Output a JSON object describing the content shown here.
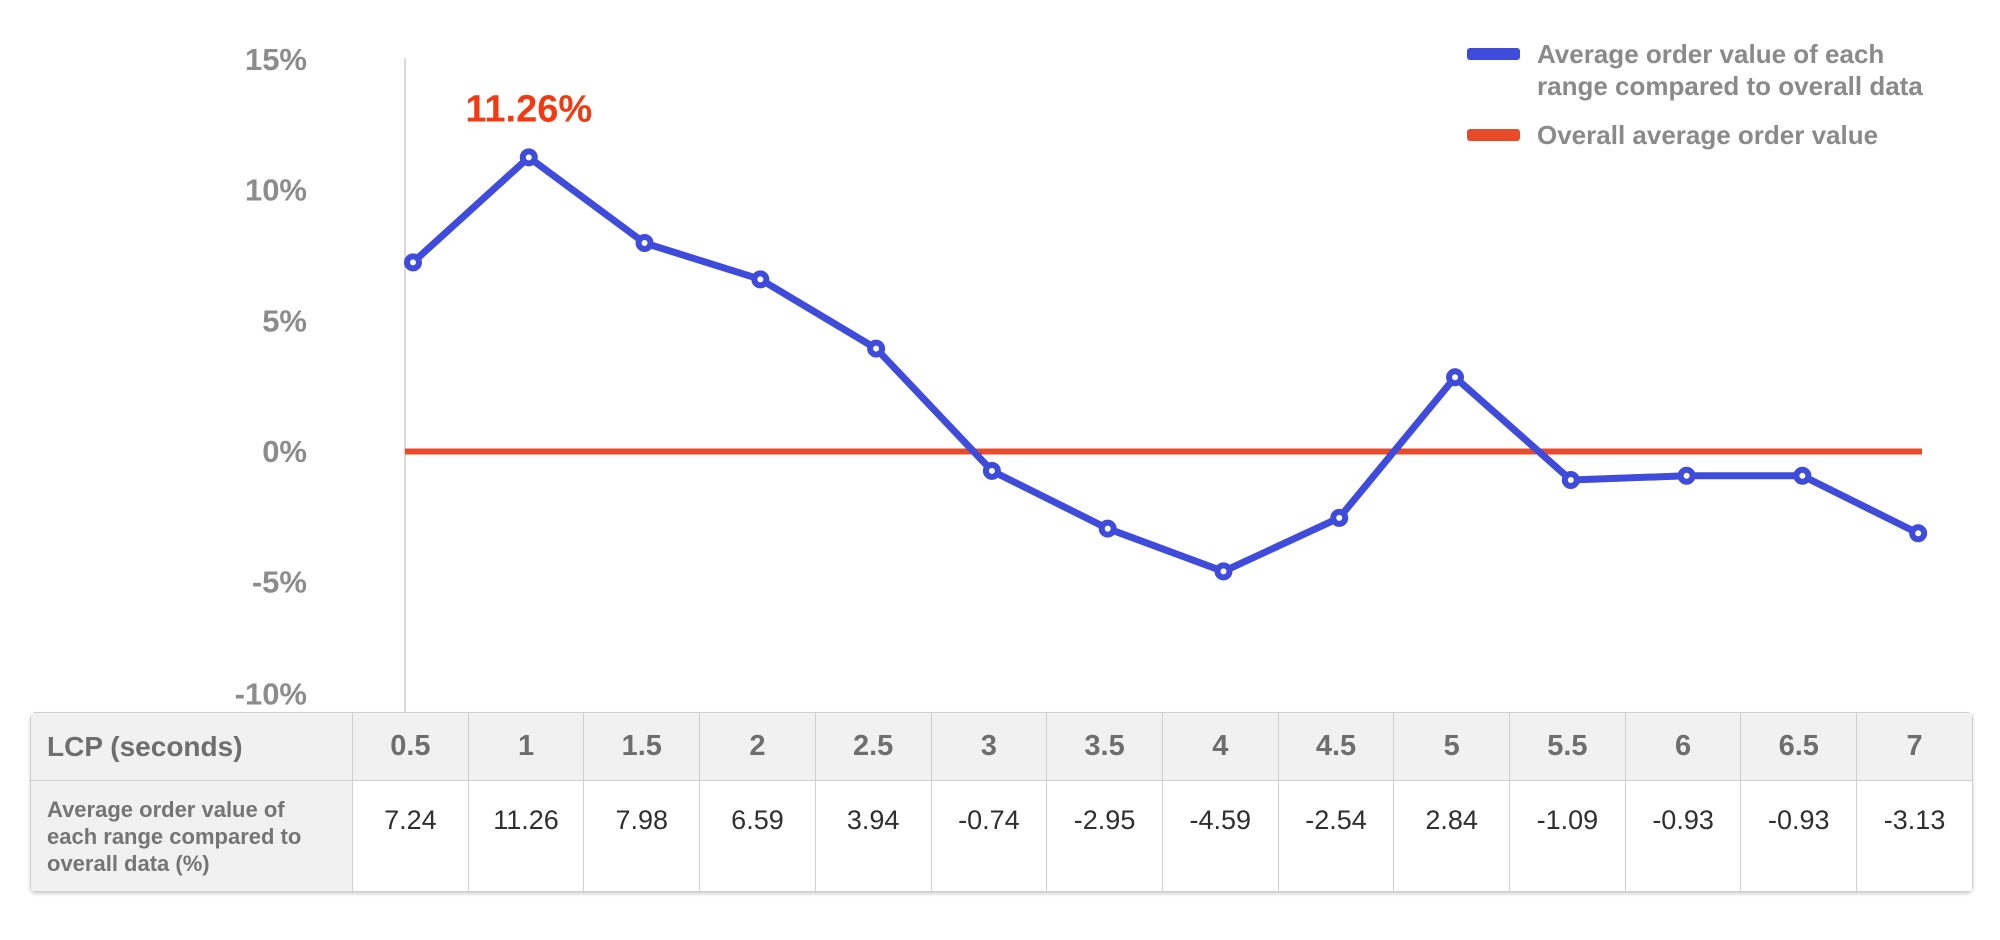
{
  "chart_data": {
    "type": "line",
    "title": "",
    "xlabel": "LCP (seconds)",
    "ylabel": "",
    "ylim": [
      -10,
      15
    ],
    "grid": false,
    "legend_position": "top-right",
    "x": [
      0.5,
      1,
      1.5,
      2,
      2.5,
      3,
      3.5,
      4,
      4.5,
      5,
      5.5,
      6,
      6.5,
      7
    ],
    "y_ticks": [
      15,
      10,
      5,
      0,
      -5,
      -10
    ],
    "y_tick_labels": [
      "15%",
      "10%",
      "5%",
      "0%",
      "-5%",
      "-10%"
    ],
    "series": [
      {
        "name": "Average order value of each range compared to overall data",
        "type": "line",
        "color": "#3E4BDB",
        "values": [
          7.24,
          11.26,
          7.98,
          6.59,
          3.94,
          -0.74,
          -2.95,
          -4.59,
          -2.54,
          2.84,
          -1.09,
          -0.93,
          -0.93,
          -3.13
        ]
      },
      {
        "name": "Overall average order value",
        "type": "reference-line",
        "color": "#E84B2A",
        "value": 0
      }
    ],
    "annotation": {
      "text": "11.26%",
      "point_index": 1,
      "color": "#F33911"
    }
  },
  "legend": {
    "items": [
      {
        "label": "Average order value of each range compared to overall data",
        "color": "#3E4BDB"
      },
      {
        "label": "Overall average order value",
        "color": "#E84B2A"
      }
    ]
  },
  "table": {
    "header_label": "LCP (seconds)",
    "row_label": "Average order value of each range compared to overall data (%)",
    "columns": [
      "0.5",
      "1",
      "1.5",
      "2",
      "2.5",
      "3",
      "3.5",
      "4",
      "4.5",
      "5",
      "5.5",
      "6",
      "6.5",
      "7"
    ],
    "values": [
      "7.24",
      "11.26",
      "7.98",
      "6.59",
      "3.94",
      "-0.74",
      "-2.95",
      "-4.59",
      "-2.54",
      "2.84",
      "-1.09",
      "-0.93",
      "-0.93",
      "-3.13"
    ]
  },
  "colors": {
    "series_line": "#3E4BDB",
    "reference_line": "#E84B2A",
    "annotation": "#F33911",
    "axis_line": "#dadada",
    "tick_text": "#8c8c8c",
    "table_border": "#cfcfcf",
    "table_header_bg": "#f1f1f1"
  }
}
